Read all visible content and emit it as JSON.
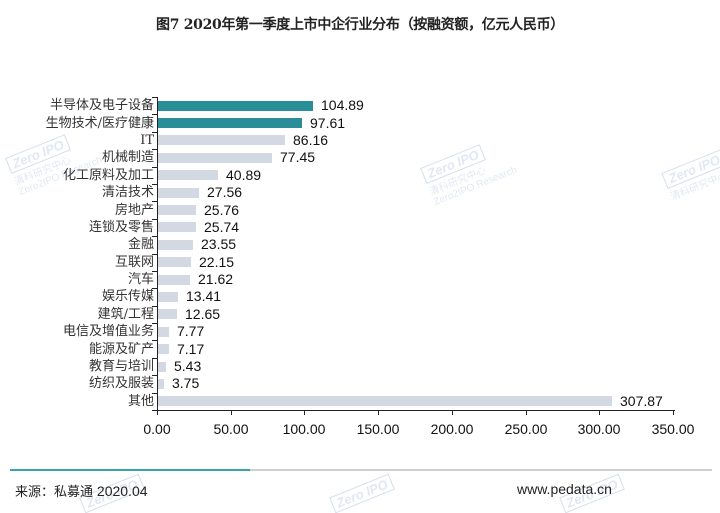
{
  "title": "图7 2020年第一季度上市中企行业分布（按融资额，亿元人民币）",
  "footer": {
    "source_label": "来源：私募通",
    "source_date": "2020.04",
    "website": "www.pedata.cn"
  },
  "watermark": {
    "logo": "Zero IPO",
    "cn": "清科研究中心",
    "en": "Zero2IPO Research"
  },
  "colors": {
    "highlight_bar": "#2a8e98",
    "normal_bar": "#d3d9e3",
    "footer_accent": "#3aa4ae",
    "footer_gray": "#cfcfcf"
  },
  "chart_data": {
    "type": "bar",
    "orientation": "horizontal",
    "title": "图7 2020年第一季度上市中企行业分布（按融资额，亿元人民币）",
    "xlabel": "",
    "ylabel": "",
    "xlim": [
      0,
      350
    ],
    "x_ticks": [
      "0.00",
      "50.00",
      "100.00",
      "150.00",
      "200.00",
      "250.00",
      "300.00",
      "350.00"
    ],
    "grid": false,
    "legend": "none",
    "categories": [
      "半导体及电子设备",
      "生物技术/医疗健康",
      "IT",
      "机械制造",
      "化工原料及加工",
      "清洁技术",
      "房地产",
      "连锁及零售",
      "金融",
      "互联网",
      "汽车",
      "娱乐传媒",
      "建筑/工程",
      "电信及增值业务",
      "能源及矿产",
      "教育与培训",
      "纺织及服装",
      "其他"
    ],
    "values": [
      104.89,
      97.61,
      86.16,
      77.45,
      40.89,
      27.56,
      25.76,
      25.74,
      23.55,
      22.15,
      21.62,
      13.41,
      12.65,
      7.77,
      7.17,
      5.43,
      3.75,
      307.87
    ],
    "value_labels": [
      "104.89",
      "97.61",
      "86.16",
      "77.45",
      "40.89",
      "27.56",
      "25.76",
      "25.74",
      "23.55",
      "22.15",
      "21.62",
      "13.41",
      "12.65",
      "7.77",
      "7.17",
      "5.43",
      "3.75",
      "307.87"
    ],
    "highlighted": [
      true,
      true,
      false,
      false,
      false,
      false,
      false,
      false,
      false,
      false,
      false,
      false,
      false,
      false,
      false,
      false,
      false,
      false
    ]
  }
}
